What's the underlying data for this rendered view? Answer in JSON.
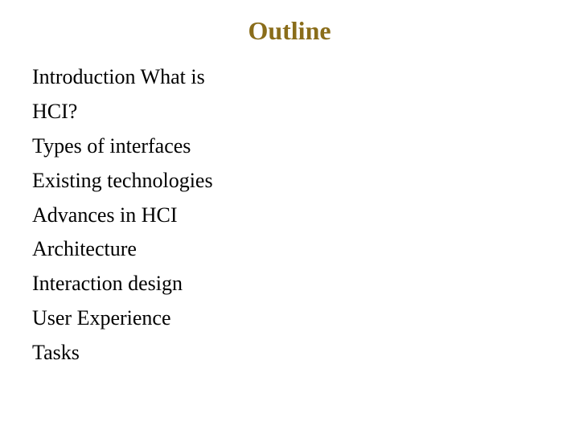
{
  "title": {
    "text": "Outline",
    "color": "#8a6d1a",
    "fontsize": 32,
    "fontweight": "bold"
  },
  "body": {
    "color": "#000000",
    "fontsize": 26
  },
  "items": [
    "Introduction What is",
    "HCI?",
    "Types of interfaces",
    "Existing technologies",
    "Advances in HCI",
    "Architecture",
    "Interaction design",
    "User Experience",
    "Tasks"
  ],
  "background_color": "#ffffff"
}
